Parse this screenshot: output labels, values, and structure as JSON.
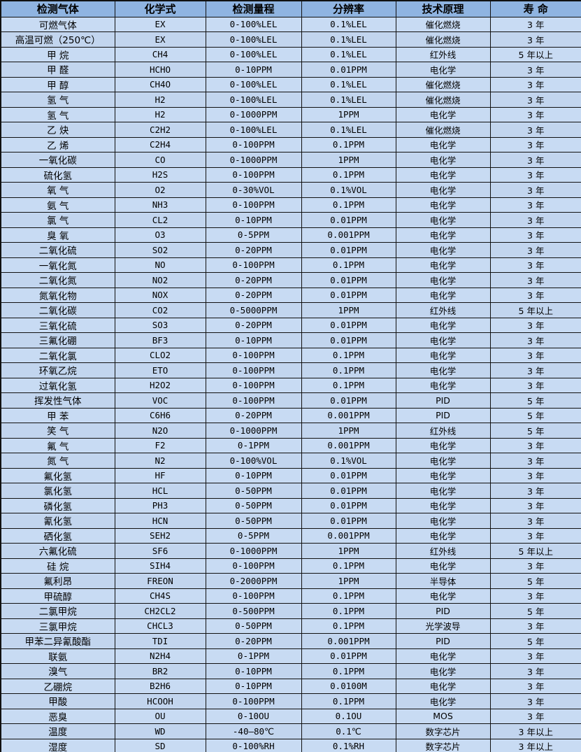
{
  "table": {
    "headers": [
      "检测气体",
      "化学式",
      "检测量程",
      "分辨率",
      "技术原理",
      "寿 命"
    ],
    "rows": [
      [
        "可燃气体",
        "EX",
        "0-100%LEL",
        "0.1%LEL",
        "催化燃烧",
        "3 年"
      ],
      [
        "高温可燃（250℃）",
        "EX",
        "0-100%LEL",
        "0.1%LEL",
        "催化燃烧",
        "3 年"
      ],
      [
        "甲 烷",
        "CH4",
        "0-100%LEL",
        "0.1%LEL",
        "红外线",
        "5 年以上"
      ],
      [
        "甲 醛",
        "HCHO",
        "0-10PPM",
        "0.01PPM",
        "电化学",
        "3 年"
      ],
      [
        "甲 醇",
        "CH4O",
        "0-100%LEL",
        "0.1%LEL",
        "催化燃烧",
        "3 年"
      ],
      [
        "氢 气",
        "H2",
        "0-100%LEL",
        "0.1%LEL",
        "催化燃烧",
        "3 年"
      ],
      [
        "氢 气",
        "H2",
        "0-1000PPM",
        "1PPM",
        "电化学",
        "3 年"
      ],
      [
        "乙 炔",
        "C2H2",
        "0-100%LEL",
        "0.1%LEL",
        "催化燃烧",
        "3 年"
      ],
      [
        "乙 烯",
        "C2H4",
        "0-100PPM",
        "0.1PPM",
        "电化学",
        "3 年"
      ],
      [
        "一氧化碳",
        "CO",
        "0-1000PPM",
        "1PPM",
        "电化学",
        "3 年"
      ],
      [
        "硫化氢",
        "H2S",
        "0-100PPM",
        "0.1PPM",
        "电化学",
        "3 年"
      ],
      [
        "氧 气",
        "O2",
        "0-30%VOL",
        "0.1%VOL",
        "电化学",
        "3 年"
      ],
      [
        "氨 气",
        "NH3",
        "0-100PPM",
        "0.1PPM",
        "电化学",
        "3 年"
      ],
      [
        "氯 气",
        "CL2",
        "0-10PPM",
        "0.01PPM",
        "电化学",
        "3 年"
      ],
      [
        "臭 氧",
        "O3",
        "0-5PPM",
        "0.001PPM",
        "电化学",
        "3 年"
      ],
      [
        "二氧化硫",
        "SO2",
        "0-20PPM",
        "0.01PPM",
        "电化学",
        "3 年"
      ],
      [
        "一氧化氮",
        "NO",
        "0-100PPM",
        "0.1PPM",
        "电化学",
        "3 年"
      ],
      [
        "二氧化氮",
        "NO2",
        "0-20PPM",
        "0.01PPM",
        "电化学",
        "3 年"
      ],
      [
        "氮氧化物",
        "NOX",
        "0-20PPM",
        "0.01PPM",
        "电化学",
        "3 年"
      ],
      [
        "二氧化碳",
        "CO2",
        "0-5000PPM",
        "1PPM",
        "红外线",
        "5 年以上"
      ],
      [
        "三氧化硫",
        "SO3",
        "0-20PPM",
        "0.01PPM",
        "电化学",
        "3 年"
      ],
      [
        "三氟化硼",
        "BF3",
        "0-10PPM",
        "0.01PPM",
        "电化学",
        "3 年"
      ],
      [
        "二氧化氯",
        "CLO2",
        "0-100PPM",
        "0.1PPM",
        "电化学",
        "3 年"
      ],
      [
        "环氧乙烷",
        "ETO",
        "0-100PPM",
        "0.1PPM",
        "电化学",
        "3 年"
      ],
      [
        "过氧化氢",
        "H2O2",
        "0-100PPM",
        "0.1PPM",
        "电化学",
        "3 年"
      ],
      [
        "挥发性气体",
        "VOC",
        "0-100PPM",
        "0.01PPM",
        "PID",
        "5 年"
      ],
      [
        "甲 苯",
        "C6H6",
        "0-20PPM",
        "0.001PPM",
        "PID",
        "5 年"
      ],
      [
        "笑 气",
        "N2O",
        "0-1000PPM",
        "1PPM",
        "红外线",
        "5 年"
      ],
      [
        "氟 气",
        "F2",
        "0-1PPM",
        "0.001PPM",
        "电化学",
        "3 年"
      ],
      [
        "氮 气",
        "N2",
        "0-100%VOL",
        "0.1%VOL",
        "电化学",
        "3 年"
      ],
      [
        "氟化氢",
        "HF",
        "0-10PPM",
        "0.01PPM",
        "电化学",
        "3 年"
      ],
      [
        "氯化氢",
        "HCL",
        "0-50PPM",
        "0.01PPM",
        "电化学",
        "3 年"
      ],
      [
        "磷化氢",
        "PH3",
        "0-50PPM",
        "0.01PPM",
        "电化学",
        "3 年"
      ],
      [
        "氰化氢",
        "HCN",
        "0-50PPM",
        "0.01PPM",
        "电化学",
        "3 年"
      ],
      [
        "硒化氢",
        "SEH2",
        "0-5PPM",
        "0.001PPM",
        "电化学",
        "3 年"
      ],
      [
        "六氟化硫",
        "SF6",
        "0-1000PPM",
        "1PPM",
        "红外线",
        "5 年以上"
      ],
      [
        "硅 烷",
        "SIH4",
        "0-100PPM",
        "0.1PPM",
        "电化学",
        "3 年"
      ],
      [
        "氟利昂",
        "FREON",
        "0-2000PPM",
        "1PPM",
        "半导体",
        "5 年"
      ],
      [
        "甲硫醇",
        "CH4S",
        "0-100PPM",
        "0.1PPM",
        "电化学",
        "3 年"
      ],
      [
        "二氯甲烷",
        "CH2CL2",
        "0-500PPM",
        "0.1PPM",
        "PID",
        "5 年"
      ],
      [
        "三氯甲烷",
        "CHCL3",
        "0-50PPM",
        "0.1PPM",
        "光学波导",
        "3 年"
      ],
      [
        "甲苯二异氰酸酯",
        "TDI",
        "0-20PPM",
        "0.001PPM",
        "PID",
        "5 年"
      ],
      [
        "联氨",
        "N2H4",
        "0-1PPM",
        "0.01PPM",
        "电化学",
        "3 年"
      ],
      [
        "溴气",
        "BR2",
        "0-10PPM",
        "0.1PPM",
        "电化学",
        "3 年"
      ],
      [
        "乙硼烷",
        "B2H6",
        "0-10PPM",
        "0.0100M",
        "电化学",
        "3 年"
      ],
      [
        "甲酸",
        "HCOOH",
        "0-100PPM",
        "0.1PPM",
        "电化学",
        "3 年"
      ],
      [
        "恶臭",
        "OU",
        "0-10OU",
        "0.1OU",
        "MOS",
        "3 年"
      ],
      [
        "温度",
        "WD",
        "-40—80℃",
        "0.1℃",
        "数字芯片",
        "3 年以上"
      ],
      [
        "湿度",
        "SD",
        "0-100%RH",
        "0.1%RH",
        "数字芯片",
        "3 年以上"
      ]
    ]
  },
  "colors": {
    "header_bg": "#8FB4E1",
    "row_bg": "#C8DBF3",
    "row_alt_bg": "#C2D5EE",
    "border": "#111111",
    "text": "#000000"
  }
}
